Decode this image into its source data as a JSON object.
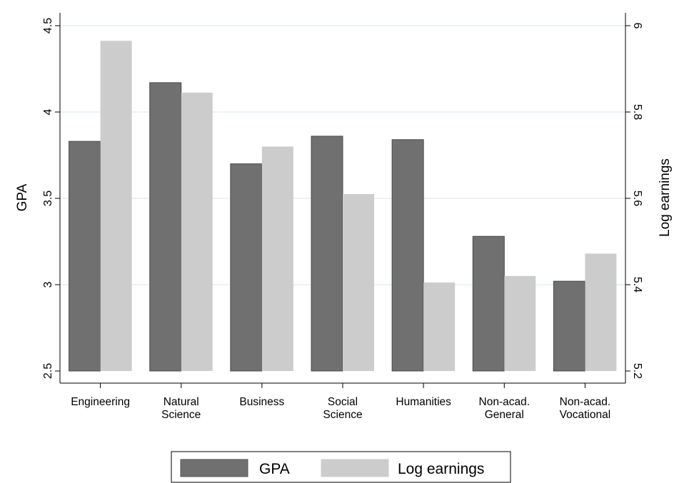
{
  "chart_data": {
    "type": "bar",
    "categories": [
      [
        "Engineering"
      ],
      [
        "Natural",
        "Science"
      ],
      [
        "Business"
      ],
      [
        "Social",
        "Science"
      ],
      [
        "Humanities"
      ],
      [
        "Non-acad.",
        "General"
      ],
      [
        "Non-acad.",
        "Vocational"
      ]
    ],
    "series": [
      {
        "name": "GPA",
        "axis": "left",
        "color": "#707070",
        "values": [
          3.83,
          4.17,
          3.7,
          3.86,
          3.84,
          3.28,
          3.02
        ]
      },
      {
        "name": "Log earnings",
        "axis": "right",
        "color": "#cccccc",
        "values": [
          5.965,
          5.845,
          5.72,
          5.61,
          5.405,
          5.42,
          5.472
        ]
      }
    ],
    "ylabel": "GPA",
    "ylabel_right": "Log earnings",
    "ylim": [
      2.5,
      4.5
    ],
    "ylim_right": [
      5.2,
      6.0
    ],
    "yticks": [
      "2.5",
      "3",
      "3.5",
      "4",
      "4.5"
    ],
    "yticks_right": [
      "5.2",
      "5.4",
      "5.6",
      "5.8",
      "6"
    ],
    "grid": true,
    "legend": "bottom"
  }
}
